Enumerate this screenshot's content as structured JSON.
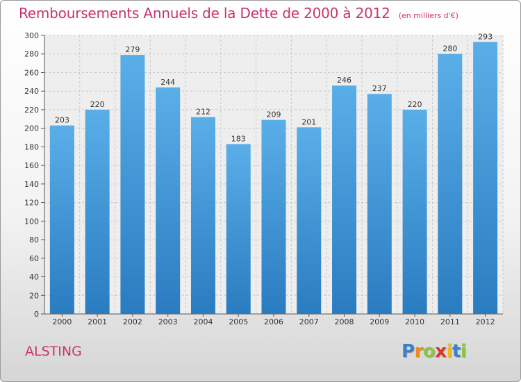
{
  "chart_data": {
    "type": "bar",
    "title": "Remboursements Annuels de la Dette de 2000 à 2012",
    "subtitle": "(en milliers d'€)",
    "categories": [
      "2000",
      "2001",
      "2002",
      "2003",
      "2004",
      "2005",
      "2006",
      "2007",
      "2008",
      "2009",
      "2010",
      "2011",
      "2012"
    ],
    "values": [
      203,
      220,
      279,
      244,
      212,
      183,
      209,
      201,
      246,
      237,
      220,
      280,
      293
    ],
    "ylim": [
      0,
      300
    ],
    "yticks": [
      0,
      20,
      40,
      60,
      80,
      100,
      120,
      140,
      160,
      180,
      200,
      220,
      240,
      260,
      280,
      300
    ],
    "grid": true,
    "bar_color": "#4a9fdf"
  },
  "commune": "ALSTING",
  "logo": {
    "letters": [
      {
        "char": "P",
        "color": "#3a7fc8"
      },
      {
        "char": "r",
        "color": "#f08a1e"
      },
      {
        "char": "o",
        "color": "#8cc63f"
      },
      {
        "char": "x",
        "color": "#e0342a"
      },
      {
        "char": "i",
        "color": "#f0b81e"
      },
      {
        "char": "t",
        "color": "#3a7fc8"
      },
      {
        "char": "i",
        "color": "#8cc63f"
      }
    ]
  }
}
